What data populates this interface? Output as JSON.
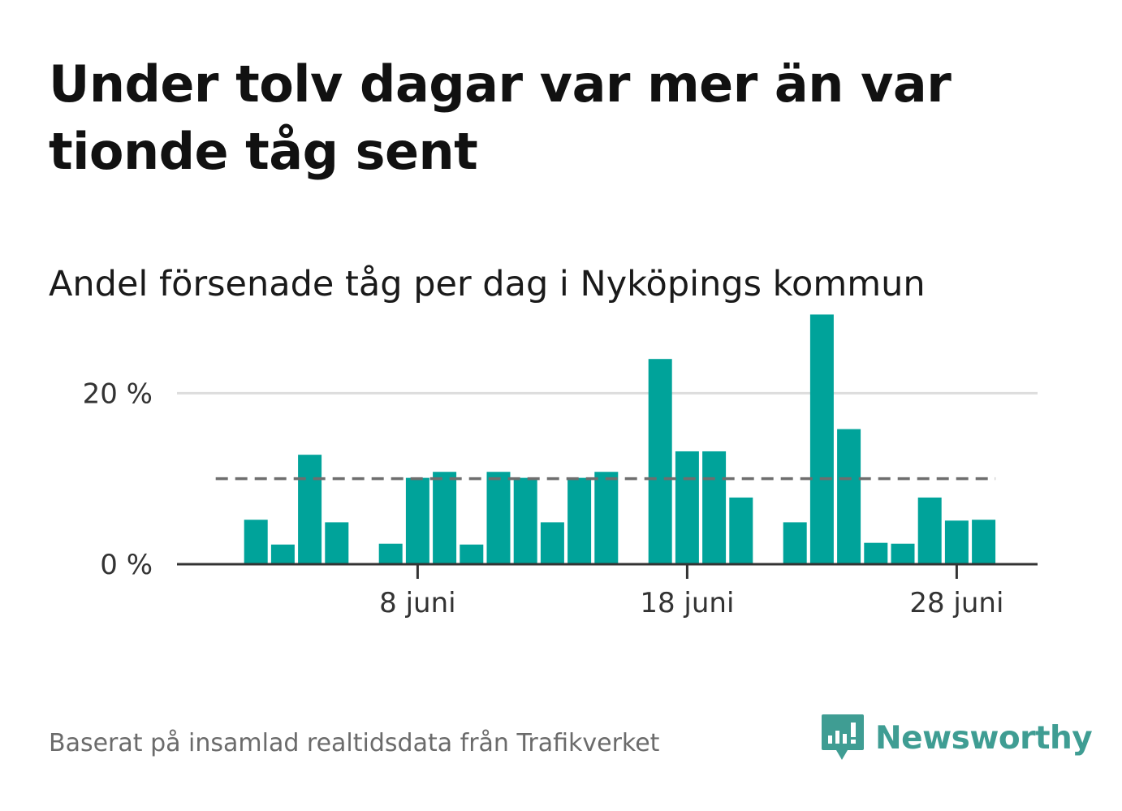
{
  "title": "Under tolv dagar var mer än var tionde tåg sent",
  "subtitle": "Andel försenade tåg per dag i Nyköpings kommun",
  "source": "Baserat på insamlad realtidsdata från Trafikverket",
  "brand": "Newsworthy",
  "colors": {
    "bar": "#00a39a",
    "reference_line": "#6e6e6e",
    "grid": "#dddddd",
    "axis": "#333333",
    "brand": "#3f9d93"
  },
  "chart_data": {
    "type": "bar",
    "x": [
      "1 juni",
      "2 juni",
      "3 juni",
      "4 juni",
      "5 juni",
      "6 juni",
      "7 juni",
      "8 juni",
      "9 juni",
      "10 juni",
      "11 juni",
      "12 juni",
      "13 juni",
      "14 juni",
      "15 juni",
      "16 juni",
      "17 juni",
      "18 juni",
      "19 juni",
      "20 juni",
      "21 juni",
      "22 juni",
      "23 juni",
      "24 juni",
      "25 juni",
      "26 juni",
      "27 juni",
      "28 juni",
      "29 juni",
      "30 juni"
    ],
    "values": [
      null,
      5.2,
      2.3,
      12.8,
      4.9,
      null,
      2.4,
      10.1,
      10.8,
      2.3,
      10.8,
      10.1,
      4.9,
      10.1,
      10.8,
      null,
      24.0,
      13.2,
      13.2,
      7.8,
      null,
      4.9,
      29.2,
      15.8,
      2.5,
      2.4,
      7.8,
      5.1,
      5.2,
      null
    ],
    "reference_line": 10,
    "yticks": [
      0,
      20
    ],
    "ytick_labels": [
      "0 %",
      "20 %"
    ],
    "xticks": [
      "8 juni",
      "18 juni",
      "28 juni"
    ],
    "ylim": [
      0,
      30
    ],
    "grid": true,
    "legend": "none"
  }
}
